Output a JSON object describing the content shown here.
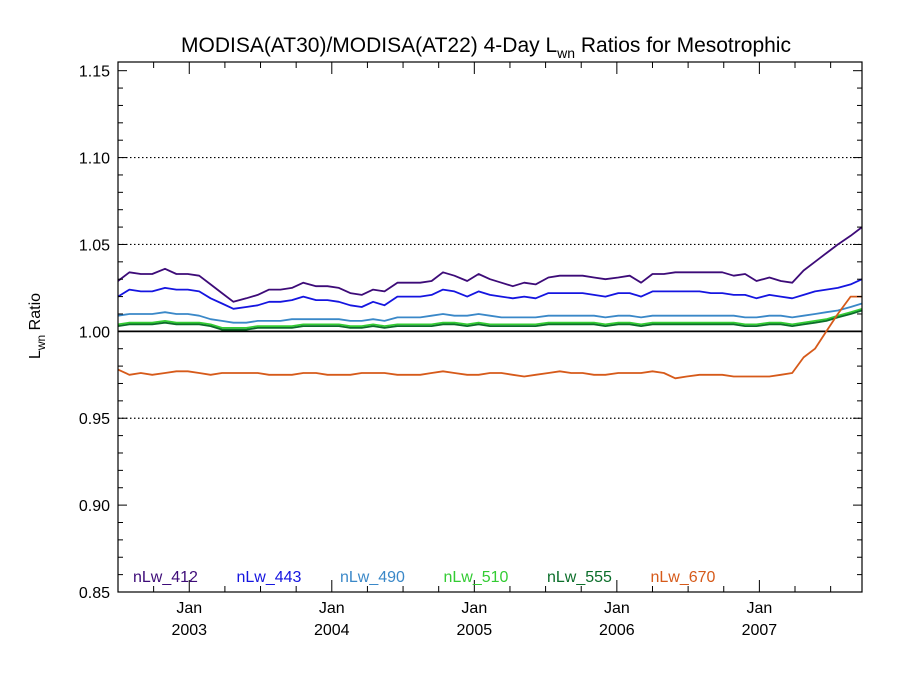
{
  "chart_data": {
    "type": "line",
    "title": {
      "prefix": "MODISA(AT30)/MODISA(AT22) 4-Day L",
      "sub": "wn",
      "suffix": " Ratios for Mesotrophic"
    },
    "ylabel": {
      "main": "L",
      "sub": "wn",
      "suffix": " Ratio"
    },
    "xlim": [
      2002.5,
      2007.72
    ],
    "ylim": [
      0.85,
      1.155
    ],
    "yticks": [
      0.85,
      0.9,
      0.95,
      1.0,
      1.05,
      1.1,
      1.15
    ],
    "ytick_labels": [
      "0.85",
      "0.90",
      "0.95",
      "1.00",
      "1.05",
      "1.10",
      "1.15"
    ],
    "y_gridlines": [
      0.95,
      1.05,
      1.1
    ],
    "reference_line": 1.0,
    "xticks": [
      {
        "x": 2003.0,
        "month": "Jan",
        "year": "2003"
      },
      {
        "x": 2004.0,
        "month": "Jan",
        "year": "2004"
      },
      {
        "x": 2005.0,
        "month": "Jan",
        "year": "2005"
      },
      {
        "x": 2006.0,
        "month": "Jan",
        "year": "2006"
      },
      {
        "x": 2007.0,
        "month": "Jan",
        "year": "2007"
      }
    ],
    "legend_placement": "bottom-left",
    "x": [
      2002.5,
      2002.58,
      2002.66,
      2002.74,
      2002.83,
      2002.91,
      2002.99,
      2003.07,
      2003.15,
      2003.23,
      2003.31,
      2003.4,
      2003.48,
      2003.56,
      2003.64,
      2003.72,
      2003.8,
      2003.89,
      2003.97,
      2004.05,
      2004.13,
      2004.21,
      2004.29,
      2004.37,
      2004.46,
      2004.54,
      2004.62,
      2004.7,
      2004.78,
      2004.86,
      2004.95,
      2005.03,
      2005.11,
      2005.19,
      2005.27,
      2005.35,
      2005.43,
      2005.52,
      2005.6,
      2005.68,
      2005.76,
      2005.84,
      2005.92,
      2006.01,
      2006.09,
      2006.17,
      2006.25,
      2006.33,
      2006.41,
      2006.49,
      2006.58,
      2006.66,
      2006.74,
      2006.82,
      2006.9,
      2006.98,
      2007.07,
      2007.15,
      2007.23,
      2007.31,
      2007.39,
      2007.47,
      2007.55,
      2007.64,
      2007.72
    ],
    "series": [
      {
        "name": "nLw_412",
        "color": "#3d0b78",
        "values": [
          1.029,
          1.034,
          1.033,
          1.033,
          1.036,
          1.033,
          1.033,
          1.032,
          1.027,
          1.022,
          1.017,
          1.019,
          1.021,
          1.024,
          1.024,
          1.025,
          1.028,
          1.026,
          1.026,
          1.025,
          1.022,
          1.021,
          1.024,
          1.023,
          1.028,
          1.028,
          1.028,
          1.029,
          1.034,
          1.032,
          1.029,
          1.033,
          1.03,
          1.028,
          1.026,
          1.028,
          1.027,
          1.031,
          1.032,
          1.032,
          1.032,
          1.031,
          1.03,
          1.031,
          1.032,
          1.028,
          1.033,
          1.033,
          1.034,
          1.034,
          1.034,
          1.034,
          1.034,
          1.032,
          1.033,
          1.029,
          1.031,
          1.029,
          1.028,
          1.035,
          1.04,
          1.045,
          1.05,
          1.055,
          1.06
        ]
      },
      {
        "name": "nLw_443",
        "color": "#1515e0",
        "values": [
          1.02,
          1.024,
          1.023,
          1.023,
          1.025,
          1.024,
          1.024,
          1.023,
          1.019,
          1.016,
          1.013,
          1.014,
          1.015,
          1.017,
          1.017,
          1.018,
          1.02,
          1.018,
          1.018,
          1.017,
          1.015,
          1.014,
          1.017,
          1.015,
          1.02,
          1.02,
          1.02,
          1.021,
          1.024,
          1.023,
          1.02,
          1.023,
          1.021,
          1.02,
          1.019,
          1.02,
          1.019,
          1.022,
          1.022,
          1.022,
          1.022,
          1.021,
          1.02,
          1.022,
          1.022,
          1.02,
          1.023,
          1.023,
          1.023,
          1.023,
          1.023,
          1.022,
          1.022,
          1.021,
          1.021,
          1.019,
          1.021,
          1.02,
          1.019,
          1.021,
          1.023,
          1.024,
          1.025,
          1.027,
          1.03
        ]
      },
      {
        "name": "nLw_490",
        "color": "#3a88c8",
        "values": [
          1.009,
          1.01,
          1.01,
          1.01,
          1.011,
          1.01,
          1.01,
          1.009,
          1.007,
          1.006,
          1.005,
          1.005,
          1.006,
          1.006,
          1.006,
          1.007,
          1.007,
          1.007,
          1.007,
          1.007,
          1.006,
          1.006,
          1.007,
          1.006,
          1.008,
          1.008,
          1.008,
          1.009,
          1.01,
          1.009,
          1.009,
          1.01,
          1.009,
          1.008,
          1.008,
          1.008,
          1.008,
          1.009,
          1.009,
          1.009,
          1.009,
          1.009,
          1.008,
          1.009,
          1.009,
          1.008,
          1.009,
          1.009,
          1.009,
          1.009,
          1.009,
          1.009,
          1.009,
          1.009,
          1.008,
          1.008,
          1.009,
          1.009,
          1.008,
          1.009,
          1.01,
          1.011,
          1.012,
          1.014,
          1.016
        ]
      },
      {
        "name": "nLw_510",
        "color": "#33cc33",
        "values": [
          1.004,
          1.005,
          1.005,
          1.005,
          1.006,
          1.005,
          1.005,
          1.005,
          1.004,
          1.002,
          1.002,
          1.002,
          1.003,
          1.003,
          1.003,
          1.003,
          1.004,
          1.004,
          1.004,
          1.004,
          1.003,
          1.003,
          1.004,
          1.003,
          1.004,
          1.004,
          1.004,
          1.004,
          1.005,
          1.005,
          1.004,
          1.005,
          1.004,
          1.004,
          1.004,
          1.004,
          1.004,
          1.005,
          1.005,
          1.005,
          1.005,
          1.005,
          1.004,
          1.005,
          1.005,
          1.004,
          1.005,
          1.005,
          1.005,
          1.005,
          1.005,
          1.005,
          1.005,
          1.005,
          1.004,
          1.004,
          1.005,
          1.005,
          1.004,
          1.005,
          1.006,
          1.007,
          1.009,
          1.011,
          1.013
        ]
      },
      {
        "name": "nLw_555",
        "color": "#0b6e2a",
        "values": [
          1.003,
          1.004,
          1.004,
          1.004,
          1.005,
          1.004,
          1.004,
          1.004,
          1.003,
          1.001,
          1.001,
          1.001,
          1.002,
          1.002,
          1.002,
          1.002,
          1.003,
          1.003,
          1.003,
          1.003,
          1.002,
          1.002,
          1.003,
          1.002,
          1.003,
          1.003,
          1.003,
          1.003,
          1.004,
          1.004,
          1.003,
          1.004,
          1.003,
          1.003,
          1.003,
          1.003,
          1.003,
          1.004,
          1.004,
          1.004,
          1.004,
          1.004,
          1.003,
          1.004,
          1.004,
          1.003,
          1.004,
          1.004,
          1.004,
          1.004,
          1.004,
          1.004,
          1.004,
          1.004,
          1.003,
          1.003,
          1.004,
          1.004,
          1.003,
          1.004,
          1.005,
          1.006,
          1.008,
          1.01,
          1.012
        ]
      },
      {
        "name": "nLw_670",
        "color": "#d65a1a",
        "values": [
          0.978,
          0.975,
          0.976,
          0.975,
          0.976,
          0.977,
          0.977,
          0.976,
          0.975,
          0.976,
          0.976,
          0.976,
          0.976,
          0.975,
          0.975,
          0.975,
          0.976,
          0.976,
          0.975,
          0.975,
          0.975,
          0.976,
          0.976,
          0.976,
          0.975,
          0.975,
          0.975,
          0.976,
          0.977,
          0.976,
          0.975,
          0.975,
          0.976,
          0.976,
          0.975,
          0.974,
          0.975,
          0.976,
          0.977,
          0.976,
          0.976,
          0.975,
          0.975,
          0.976,
          0.976,
          0.976,
          0.977,
          0.976,
          0.973,
          0.974,
          0.975,
          0.975,
          0.975,
          0.974,
          0.974,
          0.974,
          0.974,
          0.975,
          0.976,
          0.985,
          0.99,
          1.0,
          1.01,
          1.02,
          1.02
        ]
      }
    ]
  }
}
